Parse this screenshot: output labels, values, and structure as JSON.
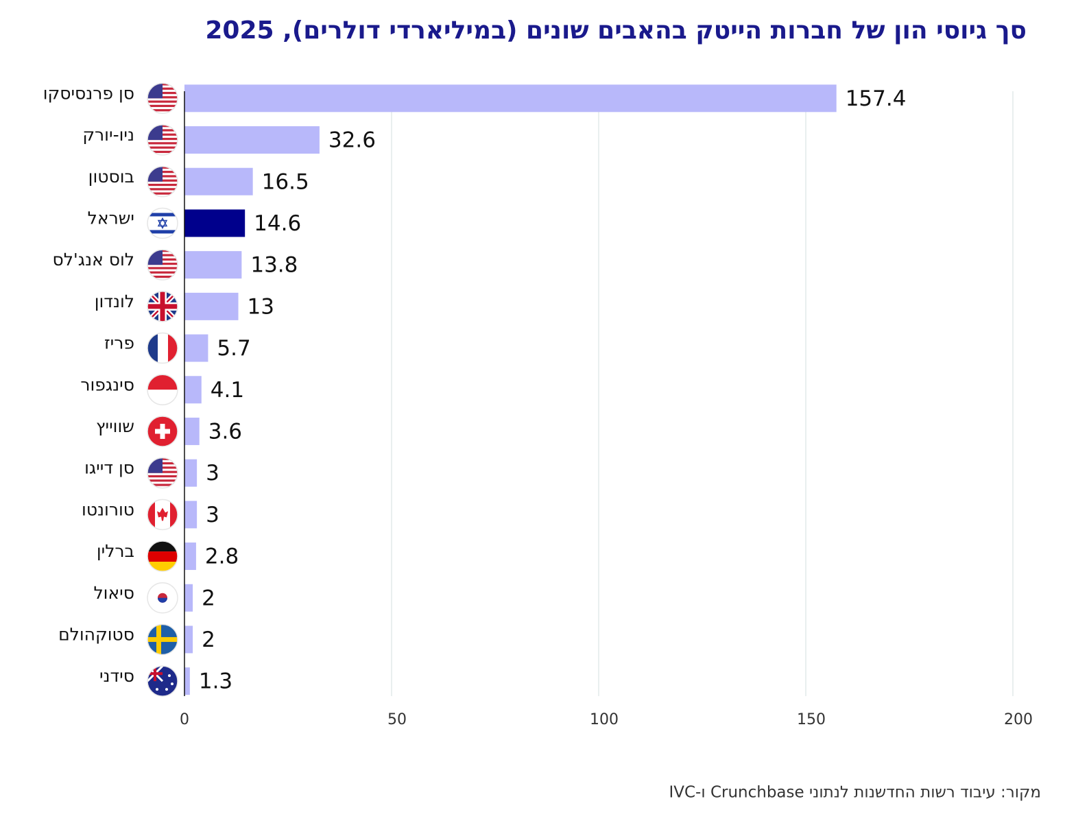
{
  "chart_data": {
    "type": "hbar",
    "title": "סך גיוסי הון של חברות הייטק בהאבים שונים (במיליארדי דולרים), 2025",
    "categories": [
      "סן פרנסיסקו",
      "ניו-יורק",
      "בוסטון",
      "ישראל",
      "לוס אנג'לס",
      "לונדון",
      "פריז",
      "סינגפור",
      "שווייץ",
      "סן דייגו",
      "טורונטו",
      "ברלין",
      "סיאול",
      "סטוקהולם",
      "סידני"
    ],
    "values": [
      157.4,
      32.6,
      16.5,
      14.6,
      13.8,
      13,
      5.7,
      4.1,
      3.6,
      3,
      3,
      2.8,
      2,
      2,
      1.3
    ],
    "colors": [
      "#b8b8fa",
      "#b8b8fa",
      "#b8b8fa",
      "#00008c",
      "#b8b8fa",
      "#b8b8fa",
      "#b8b8fa",
      "#b8b8fa",
      "#b8b8fa",
      "#b8b8fa",
      "#b8b8fa",
      "#b8b8fa",
      "#b8b8fa",
      "#b8b8fa",
      "#b8b8fa"
    ],
    "xlim": [
      0,
      200
    ],
    "xticks": [
      0,
      50,
      100,
      150,
      200
    ],
    "grid": true,
    "source": "מקור:  עיבוד רשות החדשנות לנתוני Crunchbase ו-IVC"
  }
}
